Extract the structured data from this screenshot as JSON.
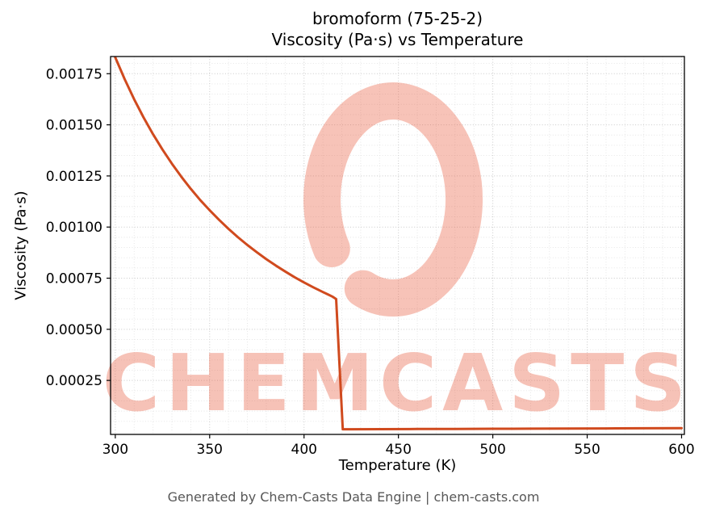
{
  "title": {
    "line1": "bromoform (75-25-2)",
    "line2": "Viscosity (Pa·s) vs Temperature"
  },
  "footer": {
    "credit": "Generated by Chem-Casts Data Engine | chem-casts.com"
  },
  "watermark": {
    "text": "CHEMCASTS",
    "color": "#e8583a"
  },
  "chart_data": {
    "type": "line",
    "title": "bromoform (75-25-2) — Viscosity (Pa·s) vs Temperature",
    "xlabel": "Temperature (K)",
    "ylabel": "Viscosity (Pa·s)",
    "xlim": [
      297.5,
      601.5
    ],
    "ylim": [
      -1.4e-05,
      0.001834
    ],
    "xticks": [
      300,
      350,
      400,
      450,
      500,
      550,
      600
    ],
    "xtick_labels": [
      "300",
      "350",
      "400",
      "450",
      "500",
      "550",
      "600"
    ],
    "yticks": [
      0.00025,
      0.0005,
      0.00075,
      0.001,
      0.00125,
      0.0015,
      0.00175
    ],
    "ytick_labels": [
      "0.00025",
      "0.00050",
      "0.00075",
      "0.00100",
      "0.00125",
      "0.00150",
      "0.00175"
    ],
    "grid": true,
    "legend": false,
    "line_color": "#d04a1e",
    "series": [
      {
        "name": "viscosity",
        "x": [
          300,
          305,
          310,
          315,
          320,
          325,
          330,
          335,
          340,
          345,
          350,
          355,
          360,
          365,
          370,
          375,
          380,
          385,
          390,
          395,
          400,
          405,
          410,
          413,
          415,
          417,
          420.5,
          425,
          440,
          460,
          480,
          500,
          520,
          540,
          560,
          580,
          600
        ],
        "y": [
          0.00183,
          0.001723,
          0.001625,
          0.001536,
          0.001454,
          0.001379,
          0.00131,
          0.001246,
          0.001187,
          0.001132,
          0.001082,
          0.001035,
          0.000991,
          0.00095,
          0.000912,
          0.000877,
          0.000843,
          0.000812,
          0.000783,
          0.000755,
          0.000729,
          0.000705,
          0.000682,
          0.000669,
          0.00066,
          0.000648,
          1.13e-05,
          1.14e-05,
          1.18e-05,
          1.24e-05,
          1.3e-05,
          1.36e-05,
          1.42e-05,
          1.48e-05,
          1.54e-05,
          1.6e-05,
          1.66e-05
        ]
      }
    ]
  }
}
